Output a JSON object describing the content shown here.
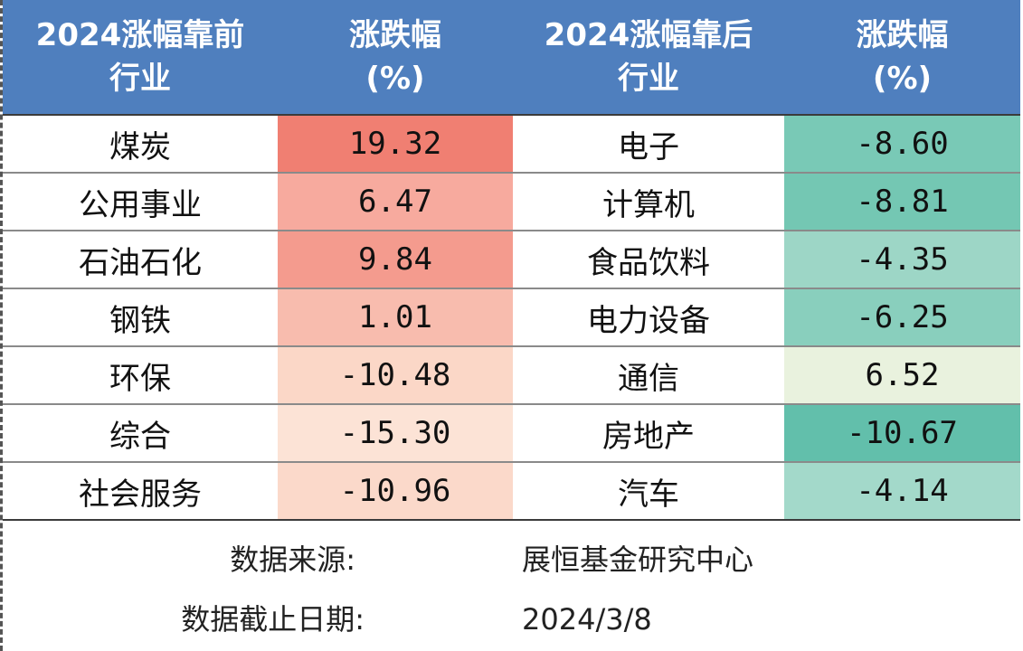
{
  "header": {
    "col1_line1": "2024涨幅靠前",
    "col1_line2": "行业",
    "col2_line1": "涨跌幅",
    "col2_line2": "(%)",
    "col3_line1": "2024涨幅靠后",
    "col3_line2": "行业",
    "col4_line1": "涨跌幅",
    "col4_line2": "(%)"
  },
  "rows": [
    {
      "top_industry": "煤炭",
      "top_change": "19.32",
      "bottom_industry": "电子",
      "bottom_change": "-8.60"
    },
    {
      "top_industry": "公用事业",
      "top_change": "6.47",
      "bottom_industry": "计算机",
      "bottom_change": "-8.81"
    },
    {
      "top_industry": "石油石化",
      "top_change": "9.84",
      "bottom_industry": "食品饮料",
      "bottom_change": "-4.35"
    },
    {
      "top_industry": "钢铁",
      "top_change": "1.01",
      "bottom_industry": "电力设备",
      "bottom_change": "-6.25"
    },
    {
      "top_industry": "环保",
      "top_change": "-10.48",
      "bottom_industry": "通信",
      "bottom_change": "6.52"
    },
    {
      "top_industry": "综合",
      "top_change": "-15.30",
      "bottom_industry": "房地产",
      "bottom_change": "-10.67"
    },
    {
      "top_industry": "社会服务",
      "top_change": "-10.96",
      "bottom_industry": "汽车",
      "bottom_change": "-4.14"
    }
  ],
  "colors": {
    "header_bg": "#4f7fbe",
    "top_change_bg": [
      "#f07f72",
      "#f7aa9e",
      "#f49b8e",
      "#f8bcae",
      "#fbd7c7",
      "#fce3d6",
      "#fbd9ca"
    ],
    "bottom_change_bg": [
      "#79c9b6",
      "#74c7b3",
      "#9dd6c6",
      "#89cfbd",
      "#e9f2de",
      "#62bfab",
      "#a3d9ca"
    ]
  },
  "footer": {
    "source_label": "数据来源:",
    "source_value": "展恒基金研究中心",
    "date_label": "数据截止日期:",
    "date_value": "2024/3/8"
  }
}
